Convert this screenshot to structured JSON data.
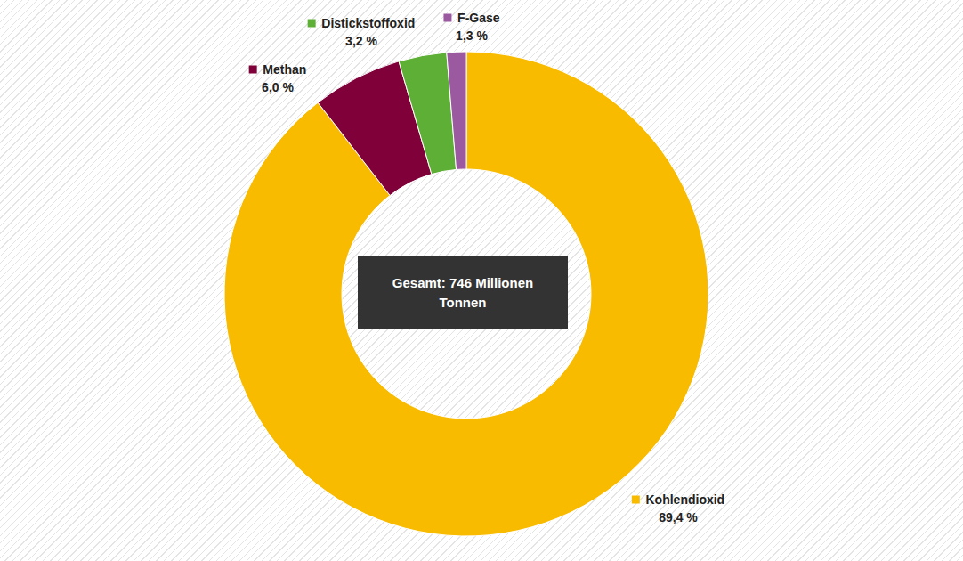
{
  "chart_data": {
    "type": "pie",
    "annotation": "Gesamt: 746 Millionen Tonnen",
    "categories": [
      "Kohlendioxid",
      "Methan",
      "Distickstoffoxid",
      "F-Gase"
    ],
    "values": [
      89.4,
      6.0,
      3.2,
      1.3
    ],
    "value_labels": [
      "89,4 %",
      "6,0 %",
      "3,2 %",
      "1,3 %"
    ],
    "colors": [
      "#f9bb00",
      "#800039",
      "#5eaf35",
      "#9b59a0"
    ],
    "data_labels": true
  }
}
